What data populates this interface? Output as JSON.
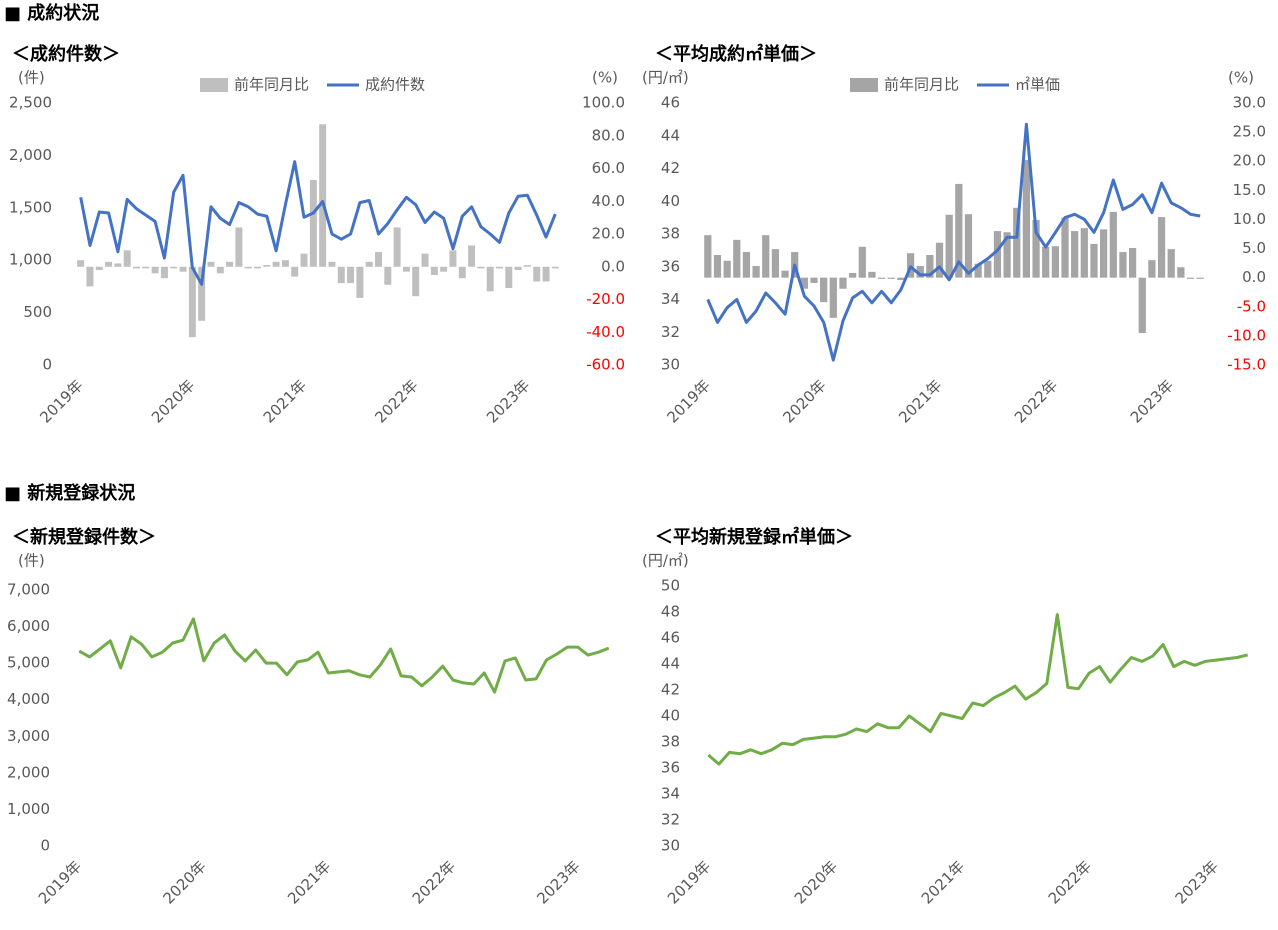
{
  "sections": [
    "■ 成約状況",
    "■ 新規登録状況"
  ],
  "chart_data": [
    {
      "type": "combo",
      "title": "＜成約件数＞",
      "ylabel": "(件)",
      "y2label": "(%)",
      "categories": [
        "2019年",
        null,
        null,
        null,
        null,
        null,
        null,
        null,
        null,
        null,
        null,
        null,
        "2020年",
        null,
        null,
        null,
        null,
        null,
        null,
        null,
        null,
        null,
        null,
        null,
        "2021年",
        null,
        null,
        null,
        null,
        null,
        null,
        null,
        null,
        null,
        null,
        null,
        "2022年",
        null,
        null,
        null,
        null,
        null,
        null,
        null,
        null,
        null,
        null,
        null,
        "2023年",
        null,
        null,
        null
      ],
      "series": [
        {
          "name": "前年同月比",
          "type": "bar",
          "axis": "y2",
          "color": "#bfbfbf",
          "values": [
            4,
            -12,
            -2,
            3,
            2,
            10,
            -1,
            -1,
            -4,
            -7,
            -1,
            -3,
            -43,
            -33,
            3,
            -4,
            3,
            24,
            -1,
            -1,
            1,
            3,
            4,
            -6,
            8,
            53,
            87,
            3,
            -10,
            -10,
            -19,
            3,
            9,
            -11,
            24,
            -3,
            -18,
            8,
            -5,
            -3,
            10,
            -7,
            13,
            -1,
            -15,
            -1,
            -13,
            -2,
            1,
            -9,
            -9,
            -1
          ]
        },
        {
          "name": "成約件数",
          "type": "line",
          "color": "#4472c4",
          "values": [
            1600,
            1140,
            1460,
            1450,
            1080,
            1580,
            1490,
            1430,
            1370,
            1020,
            1650,
            1810,
            930,
            770,
            1510,
            1400,
            1340,
            1550,
            1510,
            1440,
            1420,
            1090,
            1530,
            1940,
            1410,
            1450,
            1560,
            1250,
            1200,
            1250,
            1550,
            1570,
            1250,
            1350,
            1480,
            1600,
            1530,
            1360,
            1460,
            1400,
            1110,
            1420,
            1510,
            1320,
            1250,
            1170,
            1450,
            1610,
            1620,
            1430,
            1220,
            1440
          ]
        }
      ],
      "ylim": [
        0,
        2500
      ],
      "yticks": [
        {
          "value": 2500,
          "label": "2,500"
        },
        {
          "value": 2000,
          "label": "2,000"
        },
        {
          "value": 1500,
          "label": "1,500"
        },
        {
          "value": 1000,
          "label": "1,000"
        },
        500,
        0
      ],
      "y2lim": [
        -60,
        100
      ],
      "y2ticks": [
        {
          "value": 100,
          "label": "100.0"
        },
        {
          "value": 80,
          "label": "80.0"
        },
        {
          "value": 60,
          "label": "60.0"
        },
        {
          "value": 40,
          "label": "40.0"
        },
        {
          "value": 20,
          "label": "20.0"
        },
        {
          "value": 0,
          "label": "0.0"
        },
        {
          "value": -20,
          "label": "-20.0"
        },
        {
          "value": -40,
          "label": "-40.0"
        },
        {
          "value": -60,
          "label": "-60.0"
        }
      ],
      "y2_negative_color": "#ff0000",
      "grid": false,
      "legend": "top"
    },
    {
      "type": "combo",
      "title": "＜平均成約㎡単価＞",
      "ylabel": "(円/㎡)",
      "y2label": "(%)",
      "categories": [
        "2019年",
        null,
        null,
        null,
        null,
        null,
        null,
        null,
        null,
        null,
        null,
        null,
        "2020年",
        null,
        null,
        null,
        null,
        null,
        null,
        null,
        null,
        null,
        null,
        null,
        "2021年",
        null,
        null,
        null,
        null,
        null,
        null,
        null,
        null,
        null,
        null,
        null,
        "2022年",
        null,
        null,
        null,
        null,
        null,
        null,
        null,
        null,
        null,
        null,
        null,
        "2023年",
        null,
        null,
        null
      ],
      "series": [
        {
          "name": "前年同月比",
          "type": "bar",
          "axis": "y2",
          "color": "#a5a5a5",
          "values": [
            7.3,
            3.9,
            2.9,
            6.5,
            4.4,
            2.0,
            7.3,
            4.9,
            1.2,
            4.4,
            -1.9,
            -0.9,
            -4.2,
            -6.9,
            -1.9,
            0.8,
            5.3,
            1.0,
            -0.2,
            -0.2,
            -0.4,
            4.2,
            2.0,
            3.9,
            6.0,
            10.8,
            16.1,
            10.9,
            2.4,
            2.9,
            8.0,
            7.8,
            12.0,
            20.2,
            9.9,
            5.3,
            5.4,
            10.3,
            8.0,
            8.5,
            5.8,
            8.3,
            11.3,
            4.4,
            5.1,
            -9.5,
            3.0,
            10.4,
            4.9,
            1.8,
            -0.2,
            -0.2
          ]
        },
        {
          "name": "㎡単価",
          "type": "line",
          "color": "#4472c4",
          "values": [
            34.0,
            32.6,
            33.5,
            34.0,
            32.6,
            33.3,
            34.4,
            33.8,
            33.1,
            36.1,
            34.2,
            33.6,
            32.6,
            30.3,
            32.7,
            34.1,
            34.5,
            33.8,
            34.5,
            33.8,
            34.6,
            36.0,
            35.5,
            35.5,
            36.0,
            35.2,
            36.3,
            35.6,
            36.1,
            36.5,
            37.0,
            37.8,
            37.8,
            44.7,
            38.1,
            37.2,
            38.1,
            39.0,
            39.2,
            38.9,
            38.1,
            39.3,
            41.3,
            39.5,
            39.8,
            40.4,
            39.3,
            41.1,
            39.9,
            39.6,
            39.2,
            39.1
          ]
        }
      ],
      "ylim": [
        30,
        46
      ],
      "yticks": [
        46,
        44,
        42,
        40,
        38,
        36,
        34,
        32,
        30
      ],
      "y2lim": [
        -15,
        30
      ],
      "y2ticks": [
        {
          "value": 30,
          "label": "30.0"
        },
        {
          "value": 25,
          "label": "25.0"
        },
        {
          "value": 20,
          "label": "20.0"
        },
        {
          "value": 15,
          "label": "15.0"
        },
        {
          "value": 10,
          "label": "10.0"
        },
        {
          "value": 5,
          "label": "5.0"
        },
        {
          "value": 0,
          "label": "0.0"
        },
        {
          "value": -5,
          "label": "-5.0"
        },
        {
          "value": -10,
          "label": "-10.0"
        },
        {
          "value": -15,
          "label": "-15.0"
        }
      ],
      "y2_negative_color": "#ff0000",
      "grid": false,
      "legend": "top"
    },
    {
      "type": "line",
      "title": "＜新規登録件数＞",
      "ylabel": "(件)",
      "categories": [
        "2019年",
        null,
        null,
        null,
        null,
        null,
        null,
        null,
        null,
        null,
        null,
        null,
        "2020年",
        null,
        null,
        null,
        null,
        null,
        null,
        null,
        null,
        null,
        null,
        null,
        "2021年",
        null,
        null,
        null,
        null,
        null,
        null,
        null,
        null,
        null,
        null,
        null,
        "2022年",
        null,
        null,
        null,
        null,
        null,
        null,
        null,
        null,
        null,
        null,
        null,
        "2023年",
        null,
        null,
        null
      ],
      "color": "#70ad47",
      "values": [
        5330,
        5170,
        5390,
        5610,
        4870,
        5720,
        5520,
        5170,
        5300,
        5550,
        5630,
        6210,
        5060,
        5550,
        5770,
        5330,
        5060,
        5360,
        5000,
        5000,
        4680,
        5030,
        5090,
        5300,
        4730,
        4760,
        4790,
        4680,
        4620,
        4950,
        5390,
        4650,
        4620,
        4380,
        4620,
        4920,
        4540,
        4460,
        4430,
        4730,
        4210,
        5060,
        5140,
        4540,
        4570,
        5090,
        5250,
        5440,
        5440,
        5220,
        5300,
        5410
      ],
      "ylim": [
        0,
        7000
      ],
      "yticks": [
        {
          "value": 7000,
          "label": "7,000"
        },
        {
          "value": 6000,
          "label": "6,000"
        },
        {
          "value": 5000,
          "label": "5,000"
        },
        {
          "value": 4000,
          "label": "4,000"
        },
        {
          "value": 3000,
          "label": "3,000"
        },
        {
          "value": 2000,
          "label": "2,000"
        },
        {
          "value": 1000,
          "label": "1,000"
        },
        0
      ],
      "grid": false
    },
    {
      "type": "line",
      "title": "＜平均新規登録㎡単価＞",
      "ylabel": "(円/㎡)",
      "categories": [
        "2019年",
        null,
        null,
        null,
        null,
        null,
        null,
        null,
        null,
        null,
        null,
        null,
        "2020年",
        null,
        null,
        null,
        null,
        null,
        null,
        null,
        null,
        null,
        null,
        null,
        "2021年",
        null,
        null,
        null,
        null,
        null,
        null,
        null,
        null,
        null,
        null,
        null,
        "2022年",
        null,
        null,
        null,
        null,
        null,
        null,
        null,
        null,
        null,
        null,
        null,
        "2023年",
        null,
        null,
        null
      ],
      "color": "#70ad47",
      "values": [
        37.0,
        36.3,
        37.2,
        37.1,
        37.4,
        37.1,
        37.4,
        37.9,
        37.8,
        38.2,
        38.3,
        38.4,
        38.4,
        38.6,
        39.0,
        38.8,
        39.4,
        39.1,
        39.1,
        40.0,
        39.4,
        38.8,
        40.2,
        40.0,
        39.8,
        41.0,
        40.8,
        41.4,
        41.8,
        42.3,
        41.3,
        41.8,
        42.5,
        47.8,
        42.2,
        42.1,
        43.3,
        43.8,
        42.6,
        43.6,
        44.5,
        44.2,
        44.6,
        45.5,
        43.8,
        44.2,
        43.9,
        44.2,
        44.3,
        44.4,
        44.5,
        44.7
      ],
      "ylim": [
        30,
        50
      ],
      "yticks": [
        50,
        48,
        46,
        44,
        42,
        40,
        38,
        36,
        34,
        32,
        30
      ],
      "grid": false
    }
  ]
}
